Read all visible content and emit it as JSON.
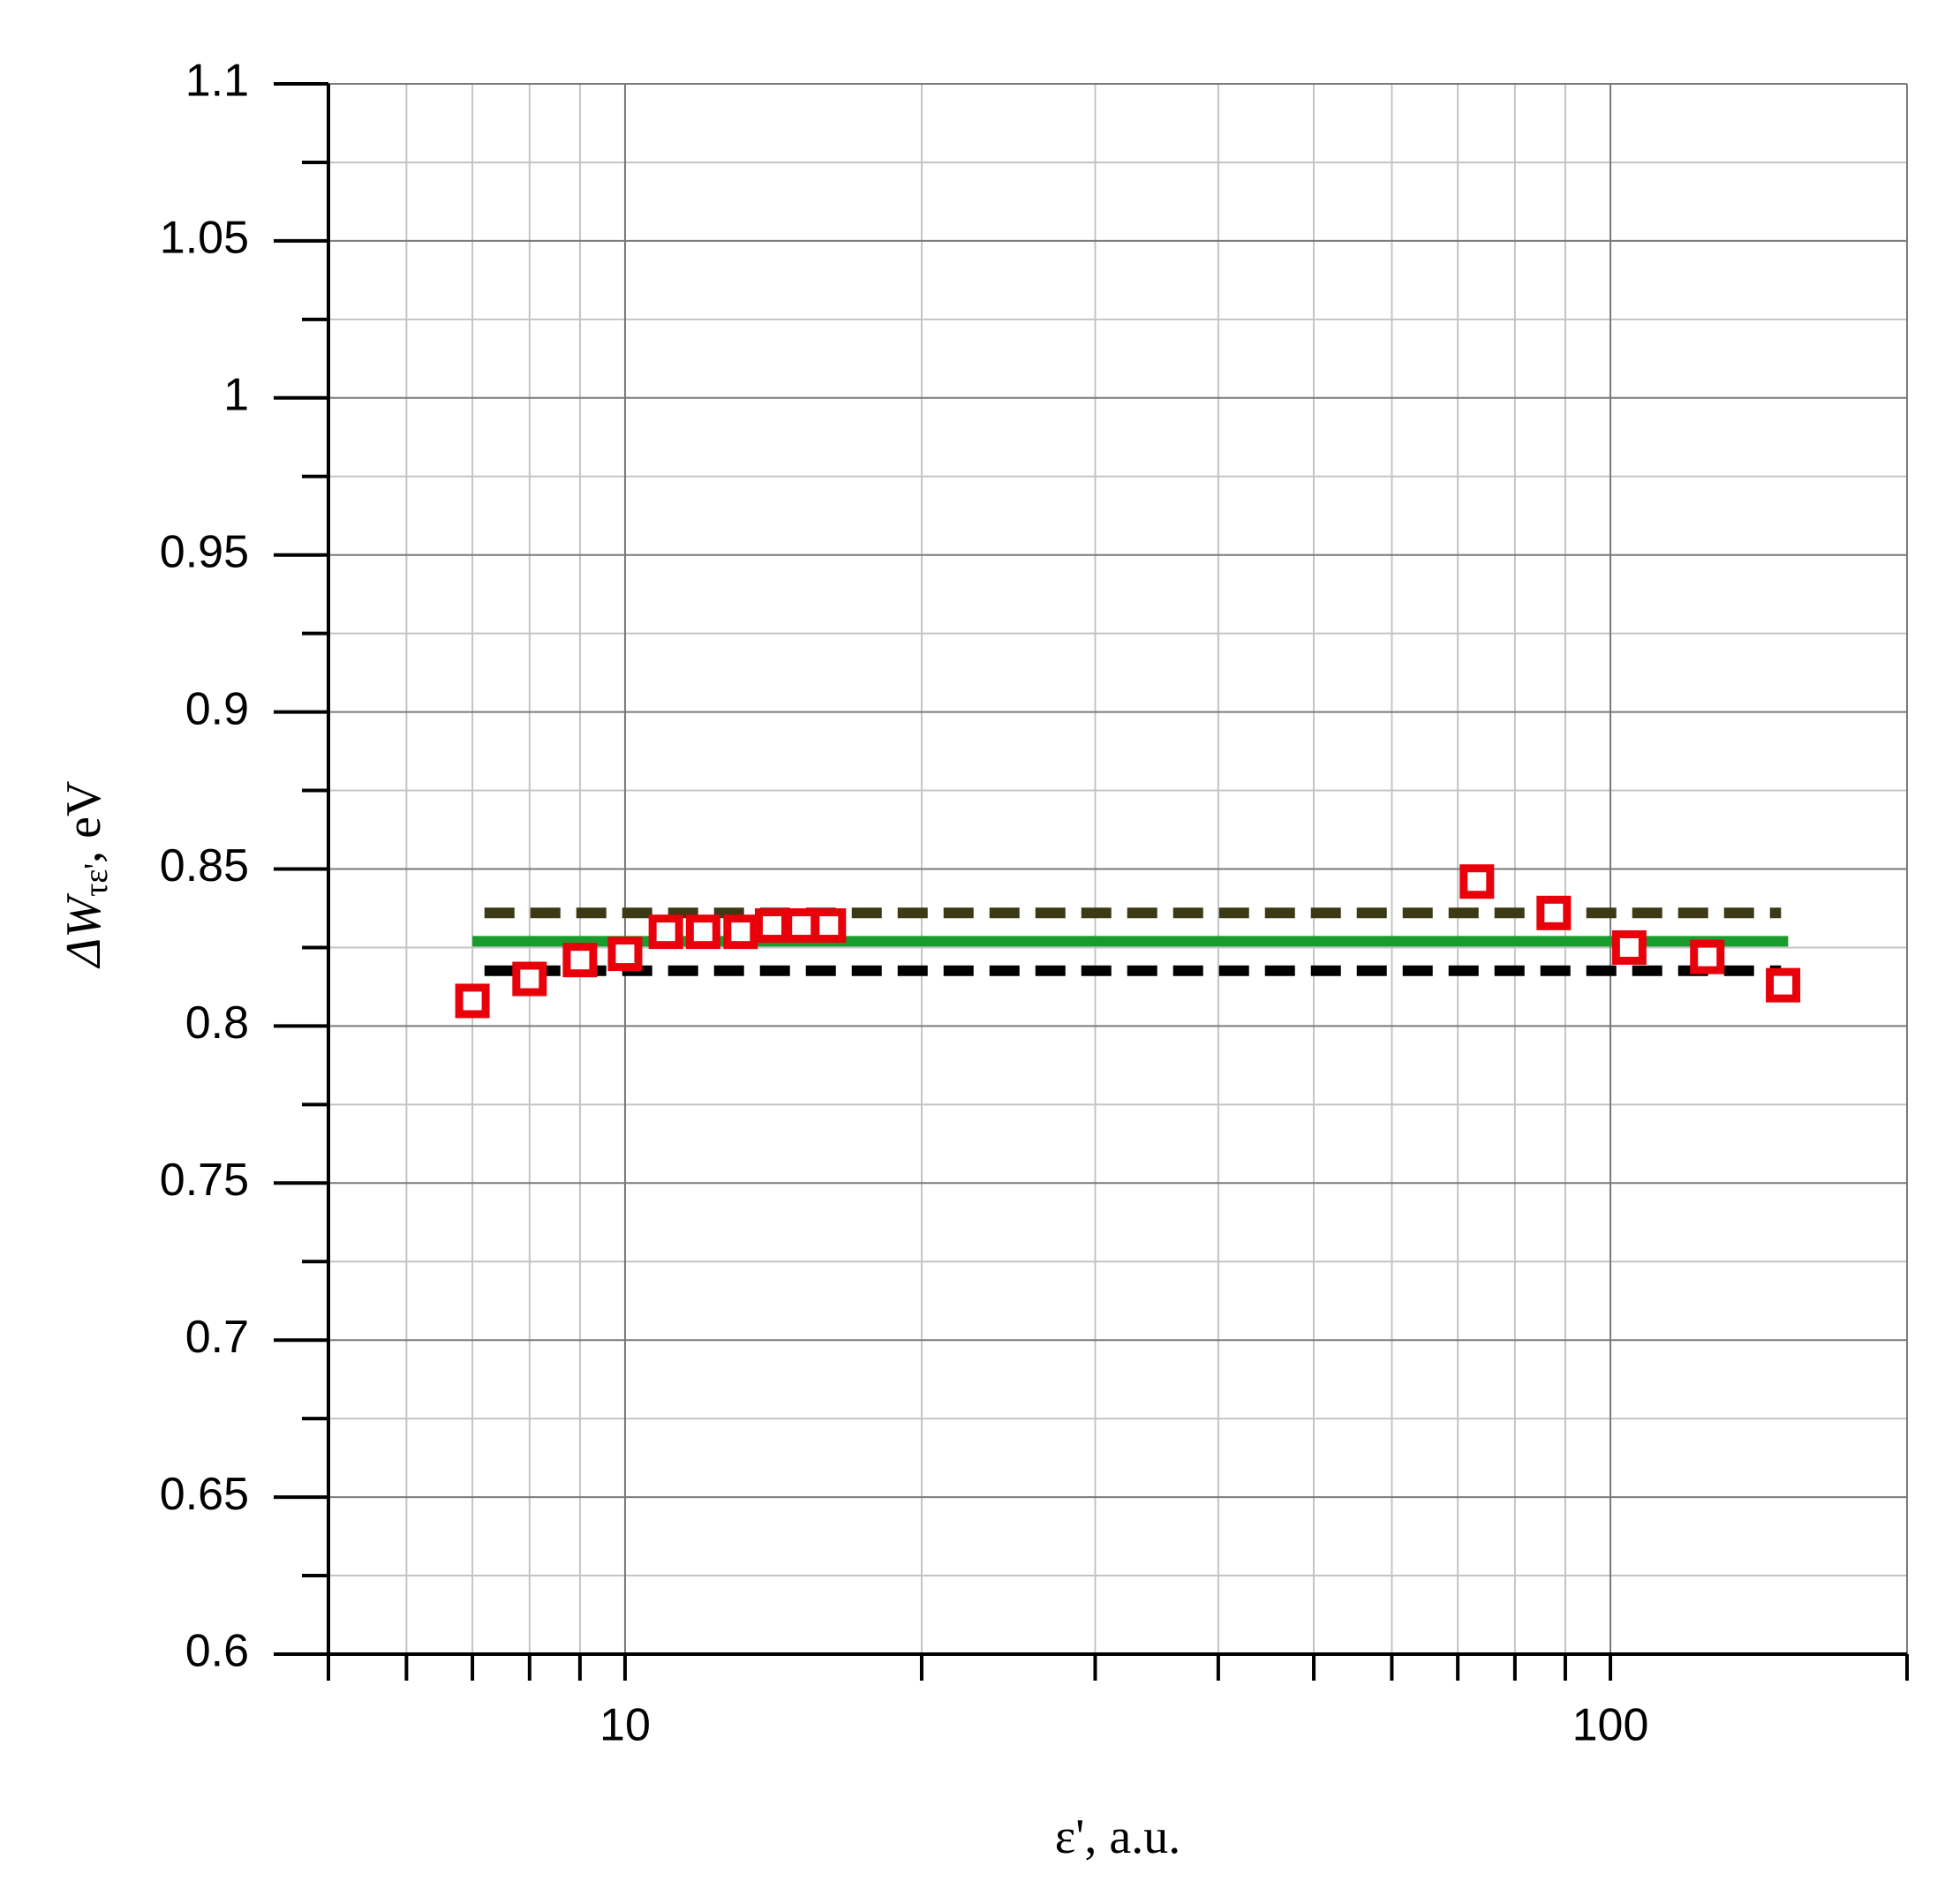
{
  "chart_data": {
    "type": "scatter",
    "xlabel": "ε', a.u.",
    "ylabel": {
      "main": "ΔW",
      "sub": "τε'",
      "rest": ", eV"
    },
    "xscale": "log",
    "xlim": [
      5,
      200
    ],
    "xticks": [
      10,
      100
    ],
    "xminorticks": [
      6,
      7,
      8,
      9,
      20,
      30,
      40,
      50,
      60,
      70,
      80,
      90
    ],
    "ylim": [
      0.6,
      1.1
    ],
    "yticks": [
      0.6,
      0.65,
      0.7,
      0.75,
      0.8,
      0.85,
      0.9,
      0.95,
      1,
      1.05,
      1.1
    ],
    "yminorticks": [
      0.625,
      0.675,
      0.725,
      0.775,
      0.825,
      0.875,
      0.925,
      0.975,
      1.025,
      1.075
    ],
    "grid": true,
    "series": [
      {
        "kind": "line",
        "dash": true,
        "color": "#3b3a14",
        "x": [
          7.2,
          149
        ],
        "values": [
          0.836,
          0.836
        ]
      },
      {
        "kind": "line",
        "dash": true,
        "color": "#000000",
        "x": [
          7.2,
          149
        ],
        "values": [
          0.8176,
          0.8176
        ]
      },
      {
        "kind": "line",
        "dash": false,
        "color": "#1a9b2e",
        "x": [
          7,
          151.5
        ],
        "values": [
          0.827,
          0.827
        ]
      },
      {
        "kind": "markers",
        "color": "#e8000b",
        "x": [
          7,
          8,
          9,
          10,
          11,
          12,
          13.1,
          14.1,
          15.1,
          16.1,
          73.2,
          87.6,
          104.5,
          125.4,
          149.7
        ],
        "values": [
          0.808,
          0.815,
          0.821,
          0.823,
          0.83,
          0.83,
          0.83,
          0.832,
          0.832,
          0.832,
          0.846,
          0.836,
          0.825,
          0.822,
          0.813
        ]
      }
    ]
  }
}
